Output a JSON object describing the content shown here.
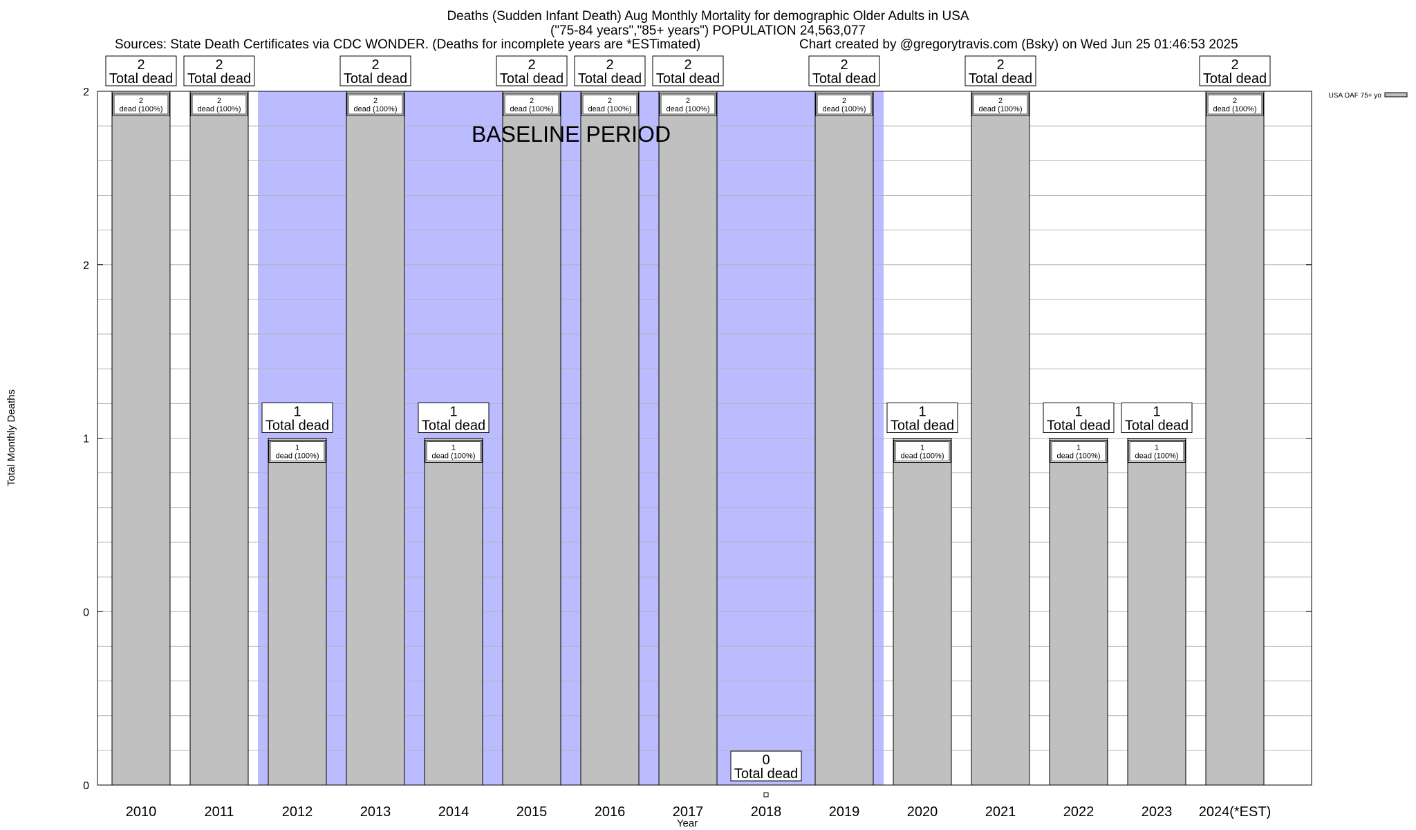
{
  "title_lines": [
    "Deaths (Sudden Infant Death) Aug Monthly Mortality for demographic Older Adults in USA",
    "(\"75-84 years\",\"85+ years\") POPULATION 24,563,077"
  ],
  "sources_text": "Sources: State Death Certificates via CDC WONDER. (Deaths for incomplete years are *ESTimated)",
  "credit_text": "Chart created by @gregorytravis.com (Bsky) on Wed Jun 25 01:46:53 2025",
  "baseline_label": "BASELINE PERIOD",
  "legend_label": "USA OAF 75+ yo",
  "total_suffix": "Total dead",
  "dead_suffix": "dead (100%)",
  "colors": {
    "bar_fill": "#c0c0c0",
    "baseline_band": "#bbbbff",
    "grid": "#b4b4b4"
  },
  "chart_data": {
    "type": "bar",
    "xlabel": "Year",
    "ylabel": "Total Monthly Deaths",
    "categories": [
      "2010",
      "2011",
      "2012",
      "2013",
      "2014",
      "2015",
      "2016",
      "2017",
      "2018",
      "2019",
      "2020",
      "2021",
      "2022",
      "2023",
      "2024(*EST)"
    ],
    "values": [
      2,
      2,
      1,
      2,
      1,
      2,
      2,
      2,
      0,
      2,
      1,
      2,
      1,
      1,
      2
    ],
    "ylim": [
      0,
      2
    ],
    "y_tick_labels": [
      "0",
      "0",
      "1",
      "2",
      "2"
    ],
    "grid": true,
    "legend_position": "top-right",
    "baseline_years": [
      "2012",
      "2013",
      "2014",
      "2015",
      "2016",
      "2017",
      "2018",
      "2019"
    ]
  }
}
